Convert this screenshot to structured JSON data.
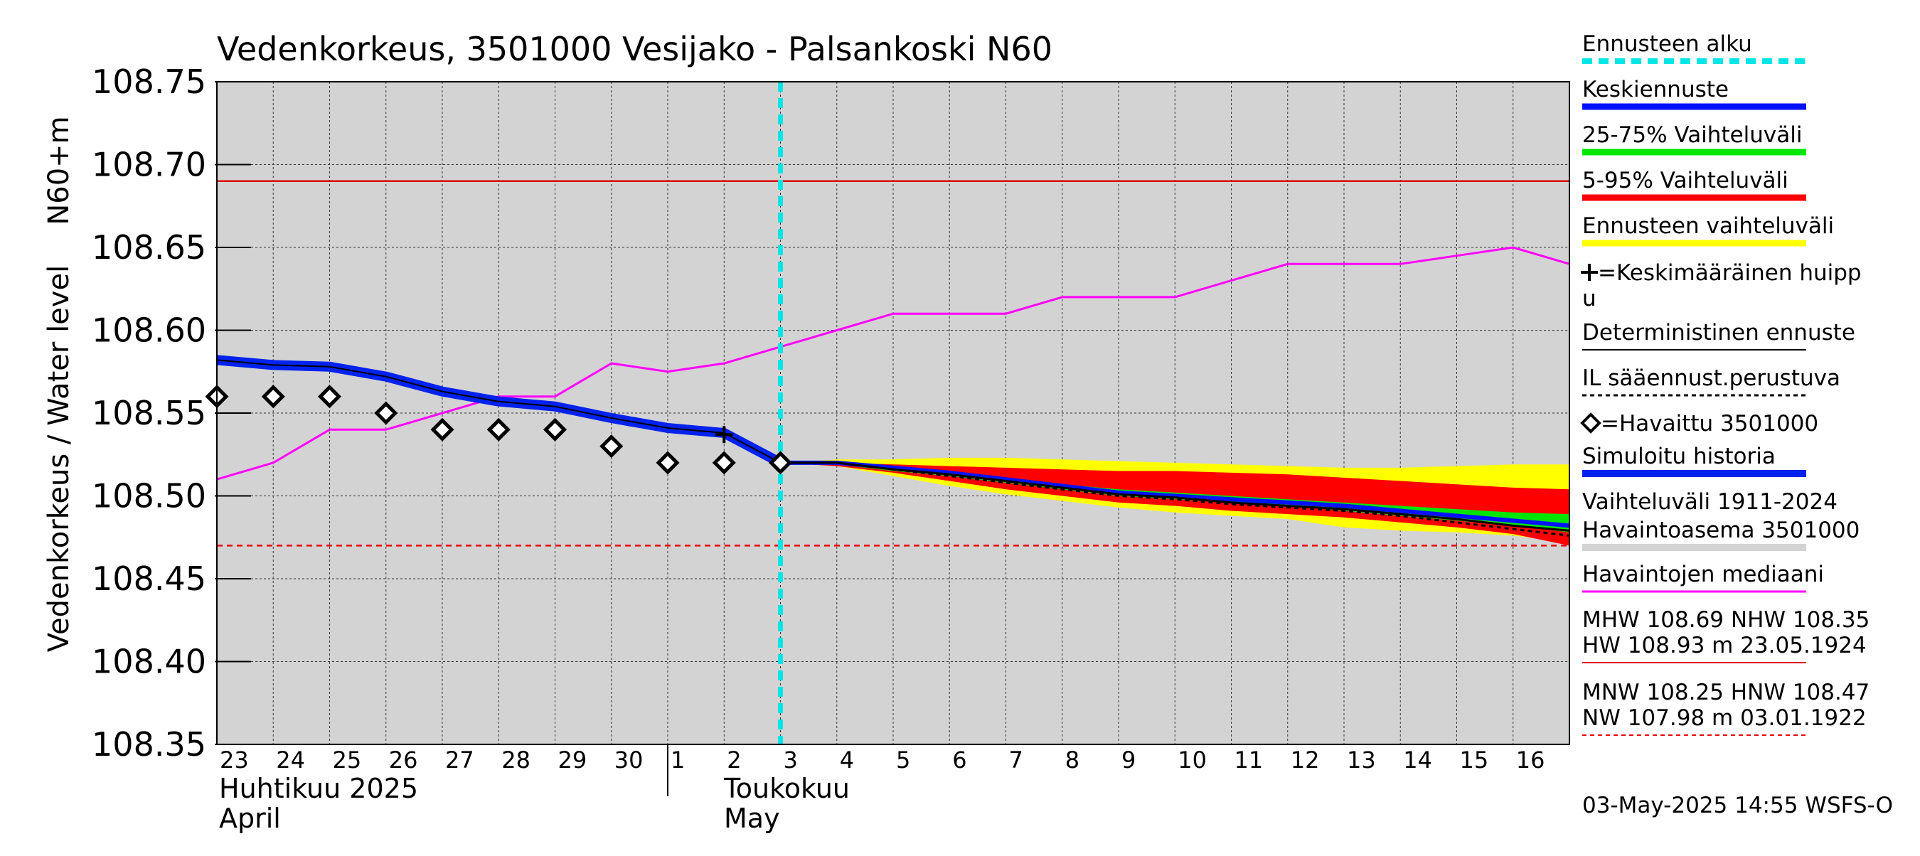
{
  "chart_data": {
    "type": "line",
    "title": "Vedenkorkeus, 3501000 Vesijako - Palsankoski N60",
    "ylabel_line1": "Vedenkorkeus / Water level",
    "ylabel_line2": "N60+m",
    "ylim": [
      108.35,
      108.75
    ],
    "y_ticks": [
      "108.35",
      "108.40",
      "108.45",
      "108.50",
      "108.55",
      "108.60",
      "108.65",
      "108.70",
      "108.75"
    ],
    "x_ticks": [
      "23",
      "24",
      "25",
      "26",
      "27",
      "28",
      "29",
      "30",
      "1",
      "2",
      "3",
      "4",
      "5",
      "6",
      "7",
      "8",
      "9",
      "10",
      "11",
      "12",
      "13",
      "14",
      "15",
      "16"
    ],
    "x_range_days": [
      0,
      24
    ],
    "month_labels": [
      {
        "line1": "Huhtikuu  2025",
        "line2": "April"
      },
      {
        "line1": "Toukokuu",
        "line2": "May"
      }
    ],
    "forecast_start_day": 10,
    "reference_lines": {
      "mhw": 108.69,
      "hnw": 108.47
    },
    "series": {
      "simulated_history": {
        "x": [
          0,
          1,
          2,
          3,
          4,
          5,
          6,
          7,
          8,
          9,
          10
        ],
        "y": [
          108.582,
          108.579,
          108.578,
          108.572,
          108.563,
          108.557,
          108.554,
          108.547,
          108.541,
          108.538,
          108.52
        ]
      },
      "observed": {
        "x": [
          0,
          1,
          2,
          3,
          4,
          5,
          6,
          7,
          8,
          9,
          10
        ],
        "y": [
          108.56,
          108.56,
          108.56,
          108.55,
          108.54,
          108.54,
          108.54,
          108.53,
          108.52,
          108.52,
          108.52
        ]
      },
      "median": {
        "x": [
          0,
          1,
          2,
          3,
          4,
          5,
          6,
          7,
          8,
          9,
          10,
          11,
          12,
          13,
          14,
          15,
          16,
          17,
          18,
          19,
          20,
          21,
          22,
          23,
          24
        ],
        "y": [
          108.51,
          108.52,
          108.54,
          108.54,
          108.55,
          108.56,
          108.56,
          108.58,
          108.575,
          108.58,
          108.59,
          108.6,
          108.61,
          108.61,
          108.61,
          108.62,
          108.62,
          108.62,
          108.63,
          108.64,
          108.64,
          108.64,
          108.645,
          108.65,
          108.64
        ]
      },
      "forecast_x": [
        10,
        11,
        12,
        13,
        14,
        15,
        16,
        17,
        18,
        19,
        20,
        21,
        22,
        23,
        24
      ],
      "forecast_mean": [
        108.52,
        108.52,
        108.517,
        108.514,
        108.51,
        108.506,
        108.502,
        108.5,
        108.498,
        108.496,
        108.494,
        108.491,
        108.488,
        108.485,
        108.482
      ],
      "deterministic": [
        108.52,
        108.52,
        108.516,
        108.513,
        108.509,
        108.505,
        108.501,
        108.499,
        108.496,
        108.494,
        108.492,
        108.489,
        108.486,
        108.482,
        108.479
      ],
      "il_forecast": [
        108.52,
        108.52,
        108.516,
        108.512,
        108.508,
        108.504,
        108.5,
        108.498,
        108.495,
        108.493,
        108.491,
        108.488,
        108.484,
        108.48,
        108.476
      ],
      "band_forecast_upper": [
        108.52,
        108.522,
        108.522,
        108.523,
        108.523,
        108.522,
        108.521,
        108.52,
        108.519,
        108.518,
        108.517,
        108.517,
        108.518,
        108.519,
        108.519
      ],
      "band_forecast_lower": [
        108.52,
        108.518,
        108.512,
        108.506,
        108.501,
        108.497,
        108.493,
        108.49,
        108.488,
        108.486,
        108.481,
        108.479,
        108.478,
        108.476,
        108.472
      ],
      "band_5_95_upper": [
        108.52,
        108.52,
        108.519,
        108.518,
        108.517,
        108.516,
        108.515,
        108.515,
        108.514,
        108.513,
        108.511,
        108.509,
        108.507,
        108.505,
        108.504
      ],
      "band_5_95_lower": [
        108.52,
        108.518,
        108.514,
        108.509,
        108.504,
        108.5,
        108.496,
        108.494,
        108.491,
        108.489,
        108.487,
        108.484,
        108.481,
        108.477,
        108.47
      ],
      "band_25_75_upper": [
        108.52,
        108.52,
        108.517,
        108.514,
        108.511,
        108.507,
        108.504,
        108.502,
        108.5,
        108.498,
        108.496,
        108.494,
        108.492,
        108.49,
        108.489
      ],
      "band_25_75_lower": [
        108.52,
        108.519,
        108.515,
        108.512,
        108.508,
        108.504,
        108.5,
        108.498,
        108.496,
        108.494,
        108.491,
        108.488,
        108.485,
        108.482,
        108.478
      ],
      "mean_peak": {
        "x": 9,
        "y": 108.537
      }
    },
    "colors": {
      "plot_bg": "#d3d3d3",
      "forecast_start": "#00e5e5",
      "mean": "#0011ff",
      "band_25_75": "#00e600",
      "band_5_95": "#ff0000",
      "band_forecast": "#ffff00",
      "deterministic": "#000000",
      "simulated": "#0022ee",
      "median": "#ff00ff",
      "mhw_line": "#dd0000",
      "hnw_line": "#ee0000",
      "observed_marker": "#000000"
    },
    "legend": [
      {
        "key": "forecast_start",
        "label": "Ennusteen alku"
      },
      {
        "key": "mean",
        "label": "Keskiennuste"
      },
      {
        "key": "band_25_75",
        "label": "25-75% Vaihteluväli"
      },
      {
        "key": "band_5_95",
        "label": "5-95% Vaihteluväli"
      },
      {
        "key": "band_forecast",
        "label": "Ennusteen vaihteluväli"
      },
      {
        "key": "mean_peak",
        "label_line1": "=Keskimääräinen huipp",
        "label_line2": "u"
      },
      {
        "key": "deterministic",
        "label": "Deterministinen ennuste"
      },
      {
        "key": "il_forecast",
        "label": "IL sääennust.perustuva"
      },
      {
        "key": "observed",
        "label": "=Havaittu 3501000"
      },
      {
        "key": "simulated",
        "label": "Simuloitu historia"
      },
      {
        "key": "range_station",
        "label_line1": "Vaihteluväli 1911-2024",
        "label_line2": " Havaintoasema 3501000"
      },
      {
        "key": "median",
        "label": "Havaintojen mediaani"
      },
      {
        "key": "mhw_line",
        "label_line1": "MHW 108.69 NHW 108.35",
        "label_line2": "HW 108.93 m 23.05.1924"
      },
      {
        "key": "hnw_line",
        "label_line1": "MNW 108.25 HNW 108.47",
        "label_line2": "NW 107.98 m 03.01.1922"
      }
    ],
    "footer": "03-May-2025 14:55 WSFS-O"
  }
}
